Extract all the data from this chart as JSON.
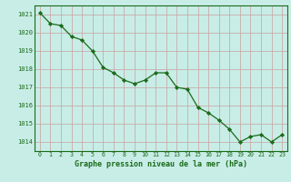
{
  "x": [
    0,
    1,
    2,
    3,
    4,
    5,
    6,
    7,
    8,
    9,
    10,
    11,
    12,
    13,
    14,
    15,
    16,
    17,
    18,
    19,
    20,
    21,
    22,
    23
  ],
  "y": [
    1021.1,
    1020.5,
    1020.4,
    1019.8,
    1019.6,
    1019.0,
    1018.1,
    1017.8,
    1017.4,
    1017.2,
    1017.4,
    1017.8,
    1017.8,
    1017.0,
    1016.9,
    1015.9,
    1015.6,
    1015.2,
    1014.7,
    1014.0,
    1014.3,
    1014.4,
    1014.0,
    1014.4
  ],
  "line_color": "#1a6b1a",
  "marker": "D",
  "marker_size": 2.2,
  "background_color": "#c8ede6",
  "grid_color": "#c8a0a0",
  "xlabel": "Graphe pression niveau de la mer (hPa)",
  "xlabel_color": "#1a6b1a",
  "tick_color": "#1a6b1a",
  "ylim": [
    1013.5,
    1021.5
  ],
  "xlim": [
    -0.5,
    23.5
  ],
  "yticks": [
    1014,
    1015,
    1016,
    1017,
    1018,
    1019,
    1020,
    1021
  ],
  "xticks": [
    0,
    1,
    2,
    3,
    4,
    5,
    6,
    7,
    8,
    9,
    10,
    11,
    12,
    13,
    14,
    15,
    16,
    17,
    18,
    19,
    20,
    21,
    22,
    23
  ]
}
